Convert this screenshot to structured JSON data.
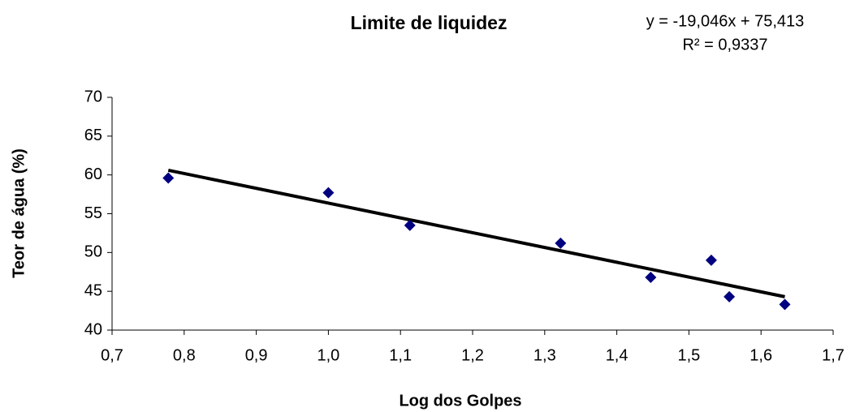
{
  "chart_data": {
    "type": "scatter",
    "title": "Limite de liquidez",
    "annotations": [
      "y = -19,046x + 75,413",
      "R² = 0,9337"
    ],
    "xlabel": "Log dos Golpes",
    "ylabel": "Teor de água (%)",
    "x": [
      0.778,
      1.0,
      1.113,
      1.322,
      1.447,
      1.531,
      1.556,
      1.633
    ],
    "values": [
      59.6,
      57.7,
      53.5,
      51.2,
      46.8,
      49.0,
      44.3,
      43.3
    ],
    "color": "#000080",
    "trendline": {
      "x": [
        0.778,
        1.633
      ],
      "values": [
        60.6,
        44.3
      ],
      "color": "#000000"
    },
    "xlim": [
      0.7,
      1.7
    ],
    "xticks": [
      {
        "value": 0.7,
        "label": "0,7"
      },
      {
        "value": 0.8,
        "label": "0,8"
      },
      {
        "value": 0.9,
        "label": "0,9"
      },
      {
        "value": 1.0,
        "label": "1,0"
      },
      {
        "value": 1.1,
        "label": "1,1"
      },
      {
        "value": 1.2,
        "label": "1,2"
      },
      {
        "value": 1.3,
        "label": "1,3"
      },
      {
        "value": 1.4,
        "label": "1,4"
      },
      {
        "value": 1.5,
        "label": "1,5"
      },
      {
        "value": 1.6,
        "label": "1,6"
      },
      {
        "value": 1.7,
        "label": "1,7"
      }
    ],
    "ylim": [
      40,
      70
    ],
    "yticks": [
      40,
      45,
      50,
      55,
      60,
      65,
      70
    ],
    "grid": false
  }
}
